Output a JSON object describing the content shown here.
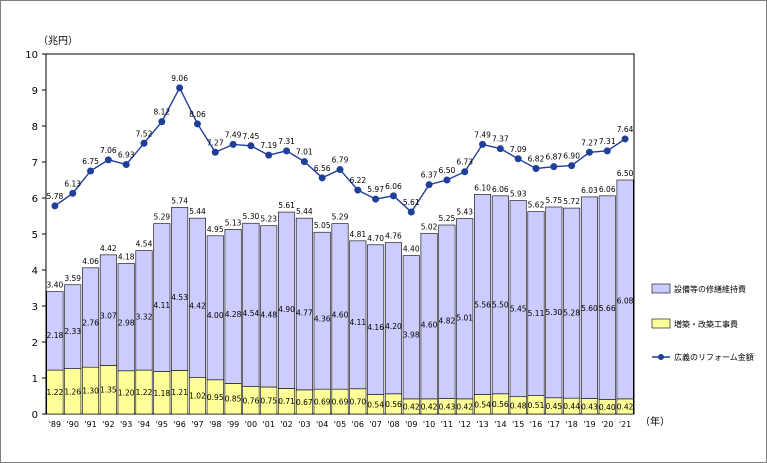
{
  "chart_data": {
    "type": "bar",
    "stacked": true,
    "title": "",
    "yunit_label": "（兆円）",
    "xunit_label": "（年）",
    "ylim": [
      0,
      10
    ],
    "yticks": [
      "0",
      "1",
      "2",
      "3",
      "4",
      "5",
      "6",
      "7",
      "8",
      "9",
      "10"
    ],
    "grid": false,
    "legend_position": "right",
    "categories": [
      "'89",
      "'90",
      "'91",
      "'92",
      "'93",
      "'94",
      "'95",
      "'96",
      "'97",
      "'98",
      "'99",
      "'00",
      "'01",
      "'02",
      "'03",
      "'04",
      "'05",
      "'06",
      "'07",
      "'08",
      "'09",
      "'10",
      "'11",
      "'12",
      "'13",
      "'14",
      "'15",
      "'16",
      "'17",
      "'18",
      "'19",
      "'20",
      "'21"
    ],
    "series": [
      {
        "name": "増築・改築工事費",
        "type": "bar",
        "color": "#ffff99",
        "values": [
          1.22,
          1.26,
          1.3,
          1.35,
          1.2,
          1.22,
          1.18,
          1.21,
          1.02,
          0.95,
          0.85,
          0.76,
          0.75,
          0.71,
          0.67,
          0.69,
          0.69,
          0.7,
          0.54,
          0.56,
          0.42,
          0.42,
          0.43,
          0.42,
          0.54,
          0.56,
          0.48,
          0.51,
          0.45,
          0.44,
          0.43,
          0.4,
          0.42
        ]
      },
      {
        "name": "設備等の修繕維持費",
        "type": "bar",
        "color": "#ccccff",
        "values": [
          2.18,
          2.33,
          2.76,
          3.07,
          2.98,
          3.32,
          4.11,
          4.53,
          4.42,
          4.0,
          4.28,
          4.54,
          4.48,
          4.9,
          4.77,
          4.36,
          4.6,
          4.11,
          4.16,
          4.2,
          3.98,
          4.6,
          4.82,
          5.01,
          5.56,
          5.5,
          5.45,
          5.11,
          5.3,
          5.28,
          5.6,
          5.66,
          6.08
        ]
      },
      {
        "name": "広義のリフォーム金額",
        "type": "line",
        "color": "#1f3f99",
        "values": [
          5.78,
          6.13,
          6.75,
          7.06,
          6.93,
          7.52,
          8.12,
          9.06,
          8.06,
          7.27,
          7.49,
          7.45,
          7.19,
          7.31,
          7.01,
          6.56,
          6.79,
          6.22,
          5.97,
          6.06,
          5.61,
          6.37,
          6.5,
          6.73,
          7.49,
          7.37,
          7.09,
          6.82,
          6.87,
          6.9,
          7.27,
          7.31,
          7.64
        ]
      }
    ],
    "bar_totals": [
      "3.40",
      "3.59",
      "4.06",
      "4.42",
      "4.18",
      "4.54",
      "5.29",
      "5.74",
      "5.44",
      "4.95",
      "5.13",
      "5.30",
      "5.23",
      "5.61",
      "5.44",
      "5.05",
      "5.29",
      "4.81",
      "4.70",
      "4.76",
      "4.40",
      "5.02",
      "5.25",
      "5.43",
      "6.10",
      "6.06",
      "5.93",
      "5.62",
      "5.75",
      "5.72",
      "6.03",
      "6.06",
      "6.50"
    ],
    "line_labels": [
      "5.78",
      "6.13",
      "6.75",
      "7.06",
      "6.93",
      "7.52",
      "8.12",
      "9.06",
      "8.06",
      "7.27",
      "7.49",
      "7.45",
      "7.19",
      "7.31",
      "7.01",
      "6.56",
      "6.79",
      "6.22",
      "5.97",
      "6.06",
      "5.61",
      "6.37",
      "6.50",
      "6.73",
      "7.49",
      "7.37",
      "7.09",
      "6.82",
      "6.87",
      "6.90",
      "7.27",
      "7.31",
      "7.64"
    ],
    "maint_labels": [
      "2.18",
      "2.33",
      "2.76",
      "3.07",
      "2.98",
      "3.32",
      "4.11",
      "4.53",
      "4.42",
      "4.00",
      "4.28",
      "4.54",
      "4.48",
      "4.90",
      "4.77",
      "4.36",
      "4.60",
      "4.11",
      "4.16",
      "4.20",
      "3.98",
      "4.60",
      "4.82",
      "5.01",
      "5.56",
      "5.50",
      "5.45",
      "5.11",
      "5.30",
      "5.28",
      "5.60",
      "5.66",
      "6.08"
    ],
    "renov_labels": [
      "1.22",
      "1.26",
      "1.30",
      "1.35",
      "1.20",
      "1.22",
      "1.18",
      "1.21",
      "1.02",
      "0.95",
      "0.85",
      "0.76",
      "0.75",
      "0.71",
      "0.67",
      "0.69",
      "0.69",
      "0.70",
      "0.54",
      "0.56",
      "0.42",
      "0.42",
      "0.43",
      "0.42",
      "0.54",
      "0.56",
      "0.48",
      "0.51",
      "0.45",
      "0.44",
      "0.43",
      "0.40",
      "0.42"
    ]
  }
}
